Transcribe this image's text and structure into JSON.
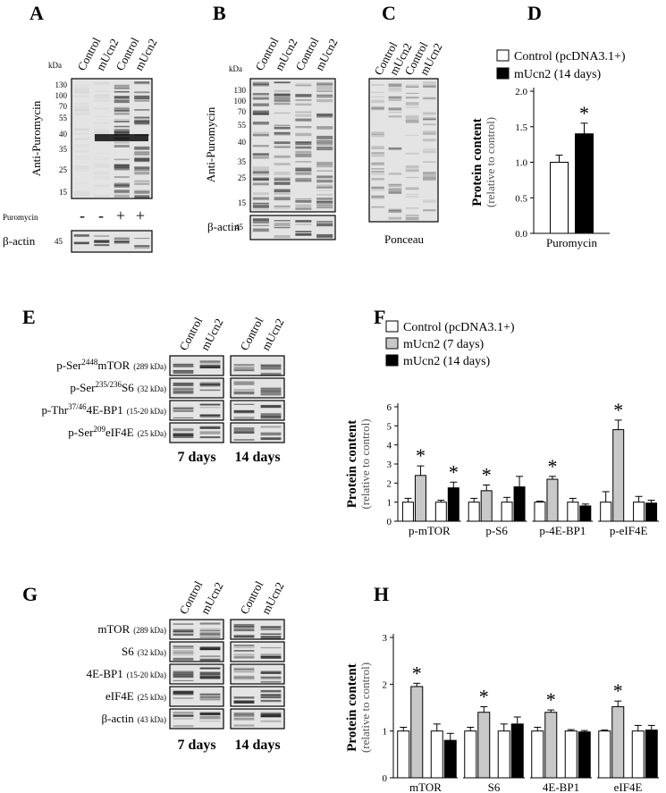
{
  "letters": [
    "A",
    "B",
    "C",
    "D",
    "E",
    "F",
    "G",
    "H"
  ],
  "blot_a": {
    "kda": "kDa",
    "lanes": [
      "Control",
      "mUcn2",
      "Control",
      "mUcn2"
    ],
    "markers": [
      130,
      100,
      70,
      55,
      40,
      35,
      25,
      15
    ],
    "antibody": "Anti-Puromycin",
    "treatment": "Puromycin",
    "signs": [
      "-",
      "-",
      "+",
      "+"
    ],
    "loading": "β-actin",
    "loading_kda": 45
  },
  "blot_b": {
    "kda": "kDa",
    "lanes": [
      "Control",
      "mUcn2",
      "Control",
      "mUcn2"
    ],
    "markers": [
      130,
      100,
      70,
      55,
      40,
      35,
      25,
      15
    ],
    "antibody": "Anti-Puromycin",
    "loading": "β-actin",
    "loading_kda": 45
  },
  "blot_c": {
    "lanes": [
      "Control",
      "mUcn2",
      "Control",
      "mUcn2"
    ],
    "stain": "Ponceau"
  },
  "blot_e": {
    "lanes": [
      "Control",
      "mUcn2",
      "Control",
      "mUcn2"
    ],
    "rows": [
      {
        "prefix": "p-Ser",
        "sup": "2448",
        "name": "mTOR",
        "size": "(289 kDa)"
      },
      {
        "prefix": "p-Ser",
        "sup": "235/236",
        "name": "S6",
        "size": "(32 kDa)"
      },
      {
        "prefix": "p-Thr",
        "sup": "37/46",
        "name": "4E-BP1",
        "size": "(15-20 kDa)"
      },
      {
        "prefix": "p-Ser",
        "sup": "209",
        "name": "eIF4E",
        "size": "(25 kDa)"
      }
    ],
    "periods": [
      "7 days",
      "14 days"
    ]
  },
  "blot_g": {
    "lanes": [
      "Control",
      "mUcn2",
      "Control",
      "mUcn2"
    ],
    "rows": [
      {
        "name": "mTOR",
        "size": "(289 kDa)"
      },
      {
        "name": "S6",
        "size": "(32 kDa)"
      },
      {
        "name": "4E-BP1",
        "size": "(15-20 kDa)"
      },
      {
        "name": "eIF4E",
        "size": "(25 kDa)"
      },
      {
        "name": "β-actin",
        "size": "(43 kDa)"
      }
    ],
    "periods": [
      "7 days",
      "14 days"
    ]
  },
  "chart_data": [
    {
      "type": "bar",
      "ylabel": [
        "Protein content",
        "(relative to control)"
      ],
      "categories": [
        "Puromycin"
      ],
      "series": [
        {
          "name": "Control (pcDNA3.1+)",
          "color": "#ffffff",
          "values": [
            1.0
          ],
          "errors": [
            0.1
          ],
          "annotations": [
            null
          ]
        },
        {
          "name": "mUcn2 (14 days)",
          "color": "#000000",
          "values": [
            1.4
          ],
          "errors": [
            0.15
          ],
          "annotations": [
            "*"
          ]
        }
      ],
      "ylim": [
        0,
        2
      ],
      "yticks": [
        {
          "value": 0,
          "label": "0.0"
        },
        0.5,
        {
          "value": 1,
          "label": "1.0"
        },
        1.5,
        {
          "value": 2,
          "label": "2.0"
        }
      ]
    },
    {
      "type": "bar",
      "ylabel": [
        "Protein content",
        "(relative to control)"
      ],
      "categories": [
        "p-mTOR",
        null,
        "p-S6",
        null,
        "p-4E-BP1",
        null,
        "p-eIF4E",
        null
      ],
      "series": [
        {
          "name": "Control (pcDNA3.1+)",
          "color": "#ffffff",
          "values": [
            1,
            1,
            1,
            1,
            1,
            1,
            1,
            1
          ],
          "errors": [
            0.2,
            0.1,
            0.2,
            0.25,
            0.05,
            0.2,
            0.55,
            0.3
          ],
          "annotations": [
            null,
            null,
            null,
            null,
            null,
            null,
            null,
            null
          ]
        },
        {
          "name": "mUcn2 (7 days)",
          "color": "#c8c8c8",
          "values": [
            2.4,
            null,
            1.6,
            null,
            2.2,
            null,
            4.8,
            null
          ],
          "errors": [
            0.5,
            null,
            0.3,
            null,
            0.15,
            null,
            0.5,
            null
          ],
          "annotations": [
            "*",
            null,
            "*",
            null,
            "*",
            null,
            "*",
            null
          ]
        },
        {
          "name": "mUcn2 (14 days)",
          "color": "#000000",
          "values": [
            null,
            1.75,
            null,
            1.8,
            null,
            0.8,
            null,
            0.95
          ],
          "errors": [
            null,
            0.3,
            null,
            0.55,
            null,
            0.1,
            null,
            0.15
          ],
          "annotations": [
            null,
            "*",
            null,
            null,
            null,
            null,
            null,
            null
          ]
        }
      ],
      "ylim": [
        0,
        6
      ],
      "yticks": [
        0,
        1,
        2,
        3,
        4,
        5,
        6
      ]
    },
    {
      "type": "bar",
      "ylabel": [
        "Protein content",
        "(relative to control)"
      ],
      "categories": [
        "mTOR",
        null,
        "S6",
        null,
        "4E-BP1",
        null,
        "eIF4E",
        null
      ],
      "series": [
        {
          "color": "#ffffff",
          "values": [
            1,
            1,
            1,
            1,
            1,
            1,
            1,
            1
          ],
          "errors": [
            0.08,
            0.15,
            0.08,
            0.15,
            0.08,
            0.03,
            0.02,
            0.12
          ],
          "annotations": [
            null,
            null,
            null,
            null,
            null,
            null,
            null,
            null
          ]
        },
        {
          "color": "#c8c8c8",
          "values": [
            1.95,
            null,
            1.4,
            null,
            1.4,
            null,
            1.52,
            null
          ],
          "errors": [
            0.07,
            null,
            0.12,
            null,
            0.05,
            null,
            0.12,
            null
          ],
          "annotations": [
            "*",
            null,
            "*",
            null,
            "*",
            null,
            "*",
            null
          ]
        },
        {
          "color": "#000000",
          "values": [
            null,
            0.8,
            null,
            1.15,
            null,
            0.98,
            null,
            1.02
          ],
          "errors": [
            null,
            0.15,
            null,
            0.15,
            null,
            0.03,
            null,
            0.1
          ],
          "annotations": [
            null,
            null,
            null,
            null,
            null,
            null,
            null,
            null
          ]
        }
      ],
      "ylim": [
        0,
        3
      ],
      "yticks": [
        0,
        1,
        2,
        3
      ]
    }
  ]
}
